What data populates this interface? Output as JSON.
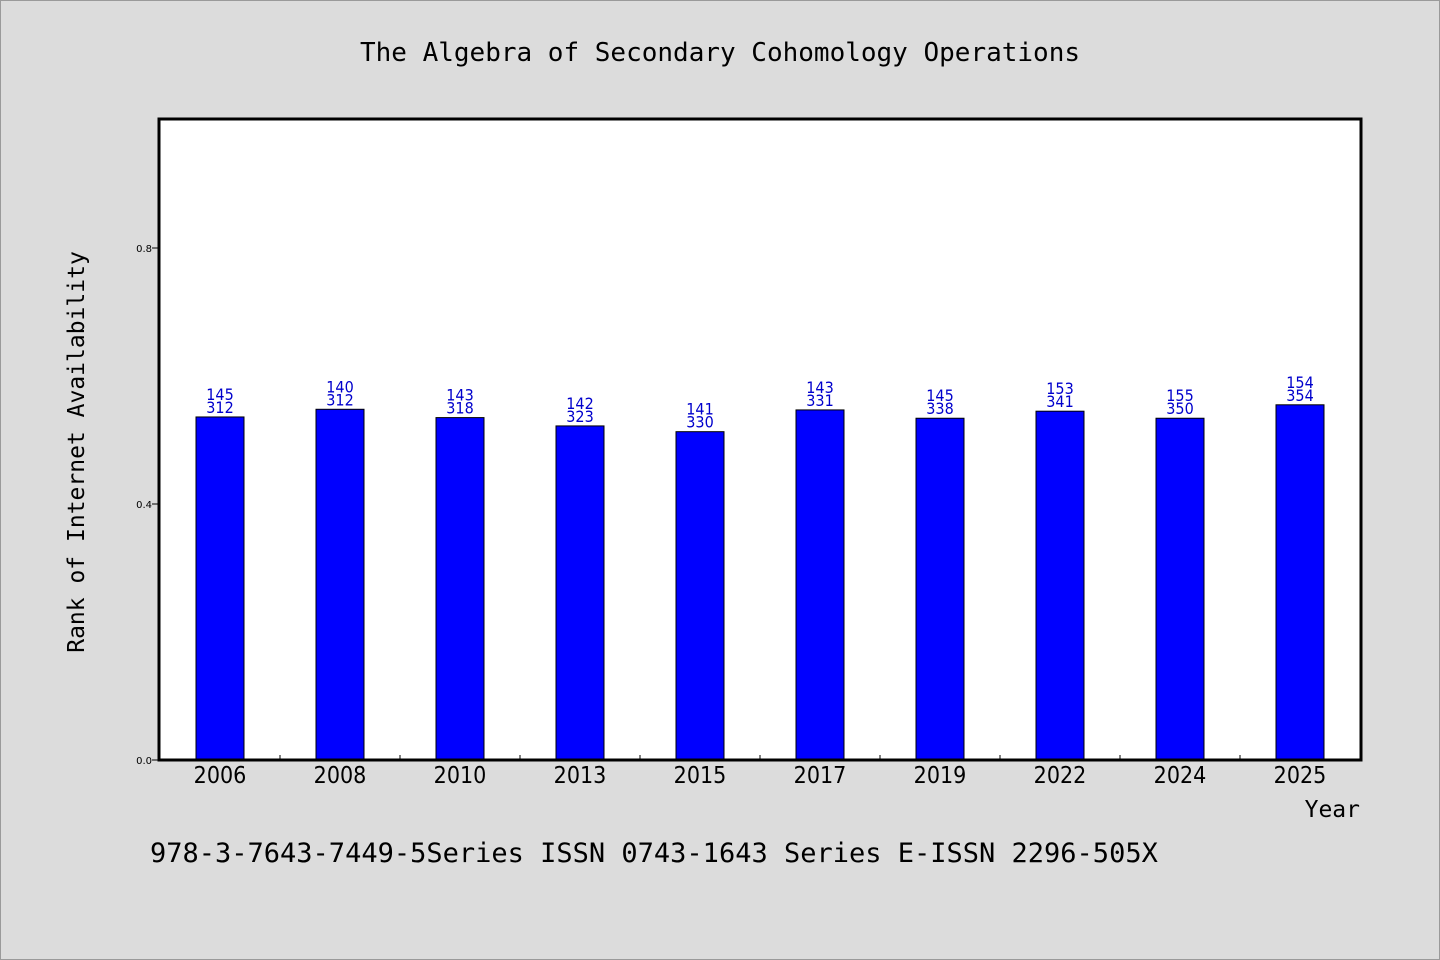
{
  "chart_data": {
    "type": "bar",
    "title": "The Algebra of Secondary Cohomology Operations",
    "xlabel": "Year",
    "ylabel": "Rank of Internet Availability",
    "footer": "978-3-7643-7449-5Series ISSN 0743-1643 Series E-ISSN 2296-505X",
    "categories": [
      "2006",
      "2008",
      "2010",
      "2013",
      "2015",
      "2017",
      "2019",
      "2022",
      "2024",
      "2025"
    ],
    "series": [
      {
        "values": [
          0.536,
          0.548,
          0.535,
          0.522,
          0.513,
          0.547,
          0.534,
          0.545,
          0.534,
          0.555
        ]
      }
    ],
    "label_top": [
      "145",
      "140",
      "143",
      "142",
      "141",
      "143",
      "145",
      "153",
      "155",
      "154"
    ],
    "label_bottom": [
      "312",
      "312",
      "318",
      "323",
      "330",
      "331",
      "338",
      "341",
      "350",
      "354"
    ],
    "yticks": [
      0.0,
      0.4,
      0.8
    ],
    "ytick_labels": [
      "0.0",
      "0.4",
      "0.8"
    ],
    "ylim": [
      0,
      1.0
    ],
    "grid": false,
    "legend": "none",
    "colors": {
      "bar": "#0000ff",
      "bar_edge": "#000000",
      "label": "#0000cc",
      "background": "#dcdcdc",
      "plot_background": "#ffffff"
    }
  }
}
